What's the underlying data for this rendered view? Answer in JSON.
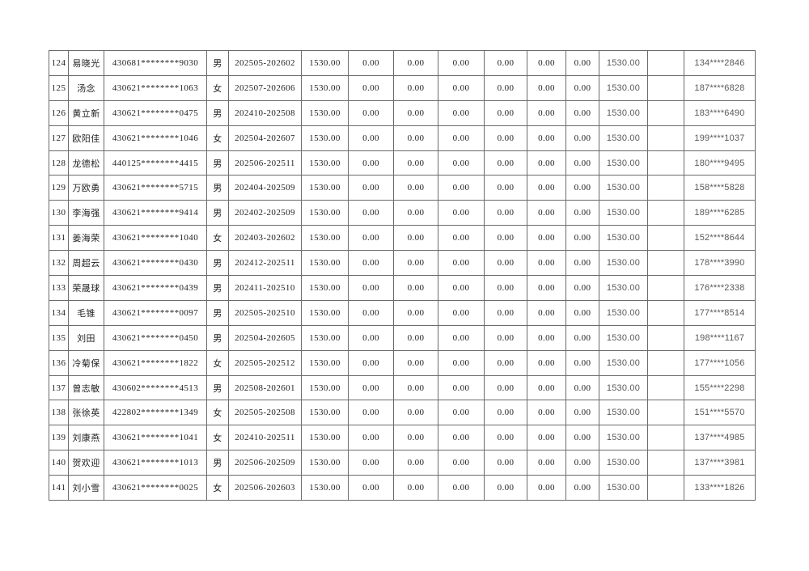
{
  "colors": {
    "background": "#ffffff",
    "border": "#6b6b6b",
    "text_serif": "#222222",
    "text_sans_muted": "#595959"
  },
  "table": {
    "rows": [
      [
        "124",
        "易晓光",
        "430681********9030",
        "男",
        "202505-202602",
        "1530.00",
        "0.00",
        "0.00",
        "0.00",
        "0.00",
        "0.00",
        "0.00",
        "1530.00",
        "",
        "134****2846"
      ],
      [
        "125",
        "汤念",
        "430621********1063",
        "女",
        "202507-202606",
        "1530.00",
        "0.00",
        "0.00",
        "0.00",
        "0.00",
        "0.00",
        "0.00",
        "1530.00",
        "",
        "187****6828"
      ],
      [
        "126",
        "黄立新",
        "430621********0475",
        "男",
        "202410-202508",
        "1530.00",
        "0.00",
        "0.00",
        "0.00",
        "0.00",
        "0.00",
        "0.00",
        "1530.00",
        "",
        "183****6490"
      ],
      [
        "127",
        "欧阳佳",
        "430621********1046",
        "女",
        "202504-202607",
        "1530.00",
        "0.00",
        "0.00",
        "0.00",
        "0.00",
        "0.00",
        "0.00",
        "1530.00",
        "",
        "199****1037"
      ],
      [
        "128",
        "龙德松",
        "440125********4415",
        "男",
        "202506-202511",
        "1530.00",
        "0.00",
        "0.00",
        "0.00",
        "0.00",
        "0.00",
        "0.00",
        "1530.00",
        "",
        "180****9495"
      ],
      [
        "129",
        "万欧勇",
        "430621********5715",
        "男",
        "202404-202509",
        "1530.00",
        "0.00",
        "0.00",
        "0.00",
        "0.00",
        "0.00",
        "0.00",
        "1530.00",
        "",
        "158****5828"
      ],
      [
        "130",
        "李海强",
        "430621********9414",
        "男",
        "202402-202509",
        "1530.00",
        "0.00",
        "0.00",
        "0.00",
        "0.00",
        "0.00",
        "0.00",
        "1530.00",
        "",
        "189****6285"
      ],
      [
        "131",
        "姜海荣",
        "430621********1040",
        "女",
        "202403-202602",
        "1530.00",
        "0.00",
        "0.00",
        "0.00",
        "0.00",
        "0.00",
        "0.00",
        "1530.00",
        "",
        "152****8644"
      ],
      [
        "132",
        "周超云",
        "430621********0430",
        "男",
        "202412-202511",
        "1530.00",
        "0.00",
        "0.00",
        "0.00",
        "0.00",
        "0.00",
        "0.00",
        "1530.00",
        "",
        "178****3990"
      ],
      [
        "133",
        "荣晟球",
        "430621********0439",
        "男",
        "202411-202510",
        "1530.00",
        "0.00",
        "0.00",
        "0.00",
        "0.00",
        "0.00",
        "0.00",
        "1530.00",
        "",
        "176****2338"
      ],
      [
        "134",
        "毛锥",
        "430621********0097",
        "男",
        "202505-202510",
        "1530.00",
        "0.00",
        "0.00",
        "0.00",
        "0.00",
        "0.00",
        "0.00",
        "1530.00",
        "",
        "177****8514"
      ],
      [
        "135",
        "刘田",
        "430621********0450",
        "男",
        "202504-202605",
        "1530.00",
        "0.00",
        "0.00",
        "0.00",
        "0.00",
        "0.00",
        "0.00",
        "1530.00",
        "",
        "198****1167"
      ],
      [
        "136",
        "冷菊保",
        "430621********1822",
        "女",
        "202505-202512",
        "1530.00",
        "0.00",
        "0.00",
        "0.00",
        "0.00",
        "0.00",
        "0.00",
        "1530.00",
        "",
        "177****1056"
      ],
      [
        "137",
        "曾志敏",
        "430602********4513",
        "男",
        "202508-202601",
        "1530.00",
        "0.00",
        "0.00",
        "0.00",
        "0.00",
        "0.00",
        "0.00",
        "1530.00",
        "",
        "155****2298"
      ],
      [
        "138",
        "张徐英",
        "422802********1349",
        "女",
        "202505-202508",
        "1530.00",
        "0.00",
        "0.00",
        "0.00",
        "0.00",
        "0.00",
        "0.00",
        "1530.00",
        "",
        "151****5570"
      ],
      [
        "139",
        "刘康燕",
        "430621********1041",
        "女",
        "202410-202511",
        "1530.00",
        "0.00",
        "0.00",
        "0.00",
        "0.00",
        "0.00",
        "0.00",
        "1530.00",
        "",
        "137****4985"
      ],
      [
        "140",
        "贺欢迎",
        "430621********1013",
        "男",
        "202506-202509",
        "1530.00",
        "0.00",
        "0.00",
        "0.00",
        "0.00",
        "0.00",
        "0.00",
        "1530.00",
        "",
        "137****3981"
      ],
      [
        "141",
        "刘小雪",
        "430621********0025",
        "女",
        "202506-202603",
        "1530.00",
        "0.00",
        "0.00",
        "0.00",
        "0.00",
        "0.00",
        "0.00",
        "1530.00",
        "",
        "133****1826"
      ]
    ]
  }
}
